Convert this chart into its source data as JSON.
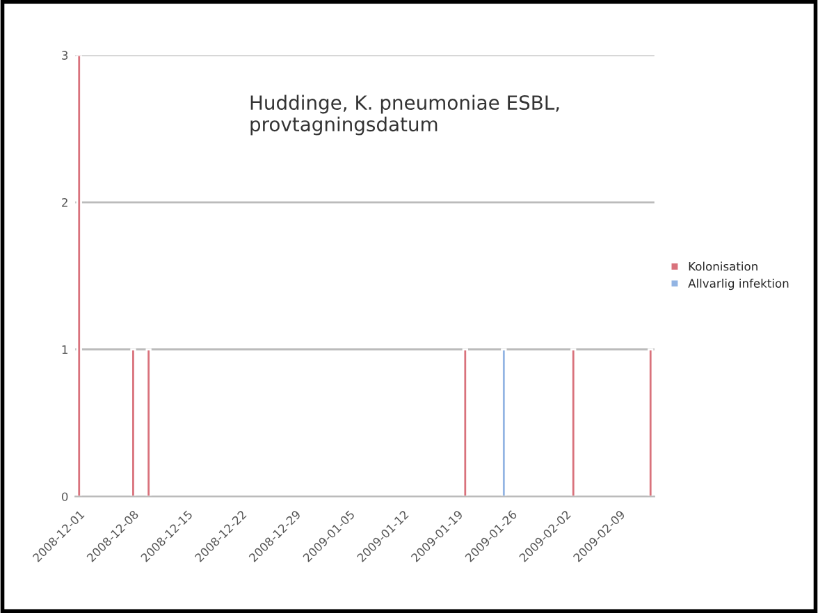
{
  "chart_data": {
    "type": "bar",
    "title": "Huddinge, K. pneumoniae ESBL,\nprovtagningsdatum",
    "series": [
      {
        "name": "Kolonisation",
        "color": "#d9727c",
        "x": [
          "2008-12-01",
          "2008-12-08",
          "2008-12-10",
          "2009-01-20",
          "2009-02-03",
          "2009-02-13"
        ],
        "values": [
          3,
          1,
          1,
          1,
          1,
          1
        ]
      },
      {
        "name": "Allvarlig infektion",
        "color": "#92b4e3",
        "x": [
          "2009-01-25"
        ],
        "values": [
          1
        ]
      }
    ],
    "xlim": [
      "2008-11-30T12:00",
      "2009-02-13T12:00"
    ],
    "xticks": [
      "2008-12-01",
      "2008-12-08",
      "2008-12-15",
      "2008-12-22",
      "2008-12-29",
      "2009-01-05",
      "2009-01-12",
      "2009-01-19",
      "2009-01-26",
      "2009-02-02",
      "2009-02-09"
    ],
    "ylim": [
      0,
      3
    ],
    "yticks": [
      0,
      1,
      2,
      3
    ],
    "grid": "y",
    "legend": "right"
  }
}
